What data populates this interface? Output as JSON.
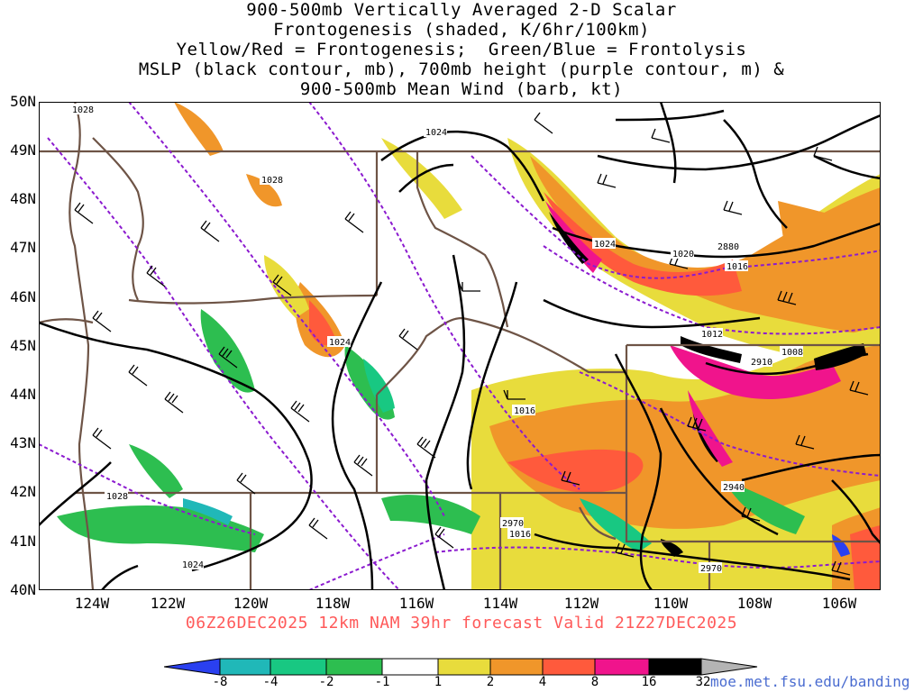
{
  "title": {
    "lines": [
      "900-500mb Vertically Averaged 2-D Scalar",
      "Frontogenesis (shaded, K/6hr/100km)",
      "Yellow/Red = Frontogenesis;  Green/Blue = Frontolysis",
      "MSLP (black contour, mb), 700mb height (purple contour, m) &",
      "900-500mb Mean Wind (barb, kt)"
    ]
  },
  "axes": {
    "lat_labels": [
      "50N",
      "49N",
      "48N",
      "47N",
      "46N",
      "45N",
      "44N",
      "43N",
      "42N",
      "41N",
      "40N"
    ],
    "lon_labels": [
      "124W",
      "122W",
      "120W",
      "118W",
      "116W",
      "114W",
      "112W",
      "110W",
      "108W",
      "106W"
    ],
    "lat_range": [
      40,
      50
    ],
    "lon_range": [
      -125.3,
      -105.0
    ]
  },
  "contour_labels": {
    "mslp": [
      "1028",
      "1024",
      "1028",
      "1024",
      "1024",
      "1020",
      "1016",
      "1012",
      "1008",
      "1016",
      "1016",
      "1028",
      "1024"
    ],
    "height_700mb": [
      "2880",
      "2910",
      "2940",
      "2970",
      "2970"
    ]
  },
  "run_info": "06Z26DEC2025 12km NAM 39hr forecast Valid 21Z27DEC2025",
  "colorbar": {
    "labels": [
      "-8",
      "-4",
      "-2",
      "-1",
      "1",
      "2",
      "4",
      "8",
      "16",
      "32"
    ],
    "colors": [
      "#2a40f0",
      "#20b8b8",
      "#18c882",
      "#2dbe50",
      "#20dd20",
      "#ffffff",
      "#e8dc3c",
      "#f0962a",
      "#ff5a3c",
      "#f0148c",
      "#000000",
      "#b4b4b4"
    ]
  },
  "credit": "moe.met.fsu.edu/banding",
  "colors": {
    "mslp": "#000000",
    "height": "#8b1acf",
    "borders": "#6e5446",
    "run_info": "#ff5a5a"
  }
}
